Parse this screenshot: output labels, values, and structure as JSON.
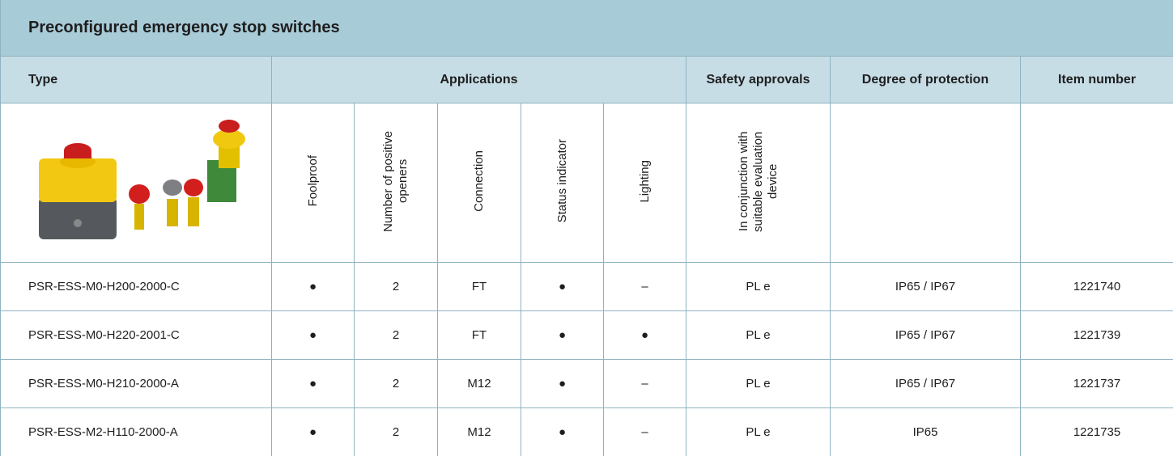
{
  "title": "Preconfigured emergency stop switches",
  "header": [
    "Type",
    "Applications",
    "Safety approvals",
    "Degree of protection",
    "Item number"
  ],
  "subheader": [
    "Foolproof",
    "Number of positive openers",
    "Connection",
    "Status indicator",
    "Lighting",
    "In conjunction with suitable evaluation device"
  ],
  "rows": [
    [
      "PSR-ESS-M0-H200-2000-C",
      "●",
      "2",
      "FT",
      "●",
      "–",
      "PL e",
      "IP65 / IP67",
      "1221740"
    ],
    [
      "PSR-ESS-M0-H220-2001-C",
      "●",
      "2",
      "FT",
      "●",
      "●",
      "PL e",
      "IP65 / IP67",
      "1221739"
    ],
    [
      "PSR-ESS-M0-H210-2000-A",
      "●",
      "2",
      "M12",
      "●",
      "–",
      "PL e",
      "IP65 / IP67",
      "1221737"
    ],
    [
      "PSR-ESS-M2-H110-2000-A",
      "●",
      "2",
      "M12",
      "●",
      "–",
      "PL e",
      "IP65",
      "1221735"
    ]
  ]
}
